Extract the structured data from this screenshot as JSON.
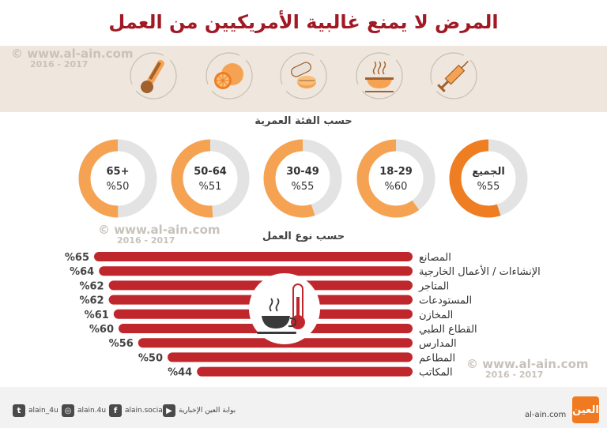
{
  "title": "المرض لا يمنع غالبية الأمريكيين من العمل",
  "watermark": {
    "url": "www.al-ain.com",
    "years": "2016 - 2017"
  },
  "icons": [
    "thermometer-icon",
    "orange-icon",
    "pills-icon",
    "hot-soup-icon",
    "syringe-icon"
  ],
  "colors": {
    "title": "#a01a25",
    "bar": "#c0272d",
    "donut_fill": "#f5a352",
    "donut_fill_all": "#ef7d22",
    "donut_track": "#e3e3e3",
    "band": "#efe7dd"
  },
  "age_section_title": "حسب الفئة العمرية",
  "work_section_title": "حسب نوع العمل",
  "chart_data": [
    {
      "type": "pie",
      "title": "حسب الفئة العمرية",
      "categories": [
        "65+",
        "50-64",
        "30-49",
        "18-29",
        "الجميع"
      ],
      "values": [
        50,
        51,
        55,
        60,
        55
      ],
      "value_labels": [
        "%50",
        "%51",
        "%55",
        "%60",
        "%55"
      ]
    },
    {
      "type": "bar",
      "title": "حسب نوع العمل",
      "categories": [
        "المصانع",
        "الإنشاءات / الأعمال الخارجية",
        "المتاجر",
        "المستودعات",
        "المخازن",
        "القطاع الطبي",
        "المدارس",
        "المطاعم",
        "المكاتب"
      ],
      "values": [
        65,
        64,
        62,
        62,
        61,
        60,
        56,
        50,
        44
      ],
      "value_labels": [
        "%65",
        "%64",
        "%62",
        "%62",
        "%61",
        "%60",
        "%56",
        "%50",
        "%44"
      ]
    }
  ],
  "footer": {
    "twitter": "alain_4u",
    "instagram": "alain.4u",
    "facebook": "alain.social",
    "youtube": "بوابة العين الإخبارية",
    "site": "al-ain.com",
    "logo": "العين"
  }
}
